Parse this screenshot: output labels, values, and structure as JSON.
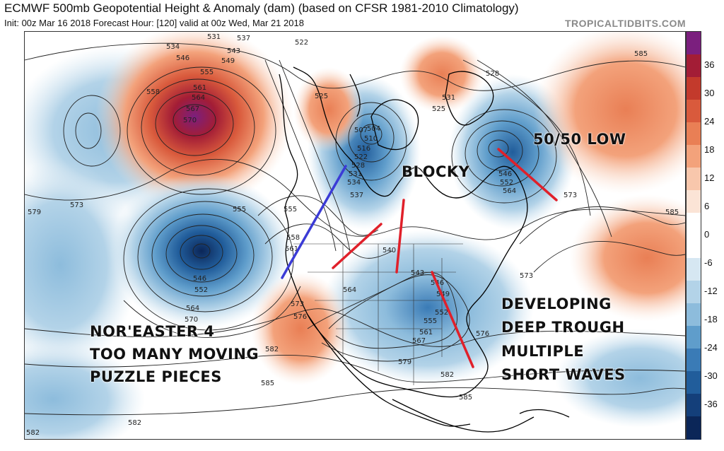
{
  "header": {
    "title": "ECMWF 500mb Geopotential Height & Anomaly (dam) (based on CFSR 1981-2010 Climatology)",
    "subtitle": "Init: 00z Mar 16 2018   Forecast Hour: [120]   valid at 00z Wed, Mar 21 2018",
    "site": "TROPICALTIDBITS.COM"
  },
  "annotations": {
    "blocky": "BLOCKY",
    "fifty_low": "50/50 LOW",
    "developing_1": "DEVELOPING",
    "developing_2": "DEEP TROUGH",
    "developing_3": "MULTIPLE",
    "developing_4": "SHORT WAVES",
    "noreaster_1": "NOR'EASTER 4",
    "noreaster_2": "TOO MANY MOVING",
    "noreaster_3": "PUZZLE PIECES"
  },
  "colorbar": {
    "labels": [
      "36",
      "30",
      "24",
      "18",
      "12",
      "6",
      "0",
      "-6",
      "-12",
      "-18",
      "-24",
      "-30",
      "-36"
    ],
    "colors": [
      "#7b1f7e",
      "#a31d36",
      "#c33a2c",
      "#d95a3c",
      "#e97f55",
      "#f3a27b",
      "#f8c7ac",
      "#fbe4d6",
      "#ffffff",
      "#ffffff",
      "#d6e7f2",
      "#b3d3e8",
      "#8dbcdc",
      "#5f9dcb",
      "#3a7bb6",
      "#215d9b",
      "#143f7a",
      "#0b2658"
    ]
  },
  "contour_labels": [
    "531",
    "537",
    "534",
    "543",
    "546",
    "549",
    "555",
    "558",
    "561",
    "564",
    "567",
    "570",
    "522",
    "525",
    "507",
    "504",
    "510",
    "516",
    "522",
    "528",
    "531",
    "534",
    "537",
    "528",
    "531",
    "525",
    "585",
    "573",
    "579",
    "555",
    "546",
    "552",
    "555",
    "558",
    "561",
    "540",
    "543",
    "546",
    "549",
    "552",
    "555",
    "561",
    "567",
    "564",
    "573",
    "576",
    "582",
    "579",
    "582",
    "585",
    "585",
    "582",
    "582",
    "573",
    "576",
    "564",
    "570",
    "546",
    "552",
    "564",
    "585",
    "573"
  ]
}
